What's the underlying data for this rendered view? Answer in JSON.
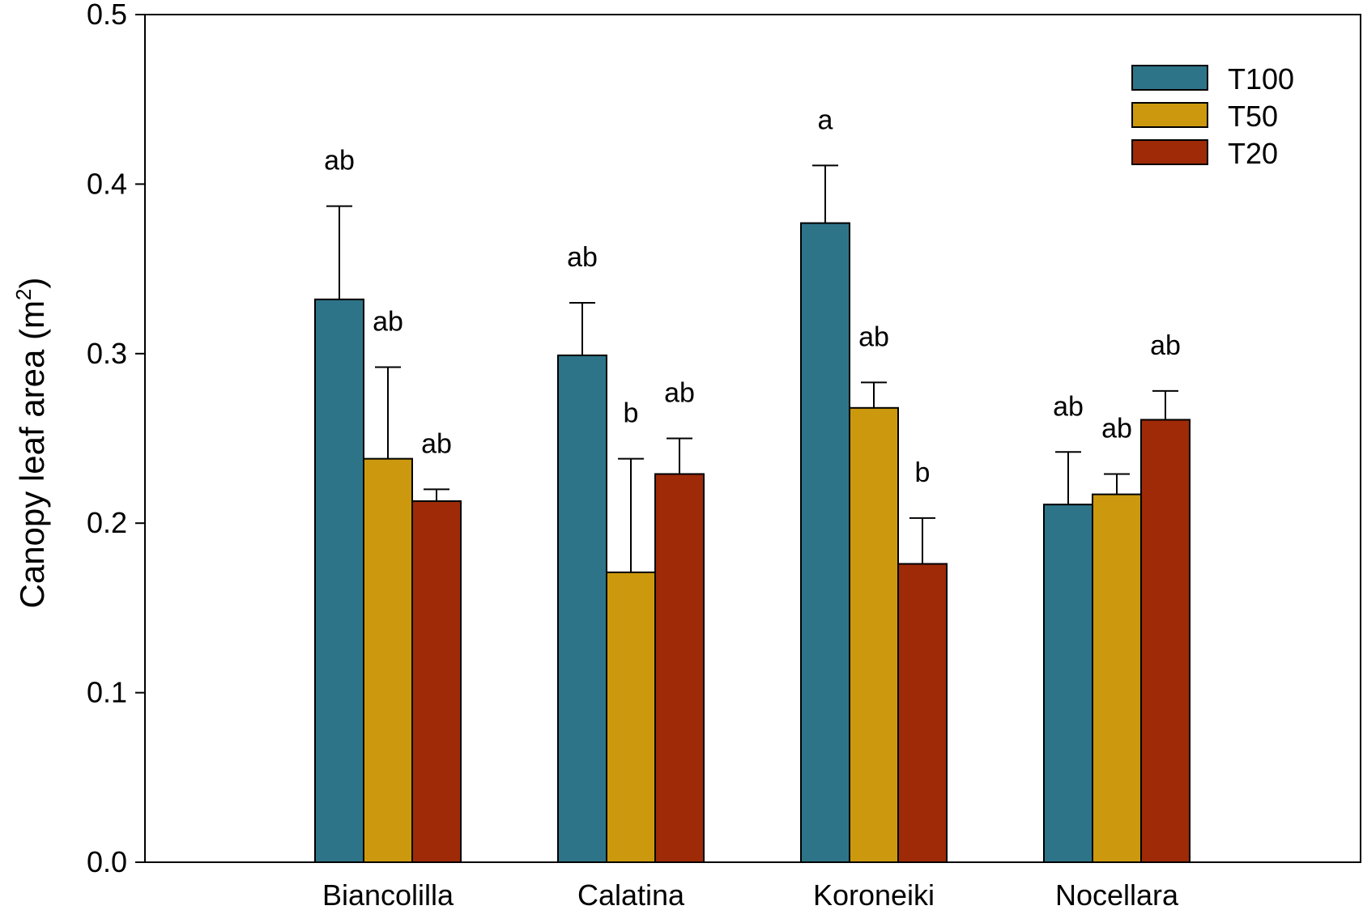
{
  "chart_data": {
    "type": "bar",
    "title": "",
    "xlabel": "",
    "ylabel": {
      "main": "Canopy leaf area (m",
      "superscript": "2",
      "close": ")"
    },
    "ylim": [
      0,
      0.5
    ],
    "yticks": [
      "0.0",
      "0.1",
      "0.2",
      "0.3",
      "0.4",
      "0.5"
    ],
    "ytick_values": [
      0,
      0.1,
      0.2,
      0.3,
      0.4,
      0.5
    ],
    "categories": [
      "Biancolilla",
      "Calatina",
      "Koroneiki",
      "Nocellara"
    ],
    "series": [
      {
        "name": "T100",
        "color": "#2E7489",
        "values": [
          0.332,
          0.299,
          0.377,
          0.211
        ],
        "error": [
          0.055,
          0.031,
          0.034,
          0.031
        ],
        "labels": [
          "ab",
          "ab",
          "a",
          "ab"
        ]
      },
      {
        "name": "T50",
        "color": "#CC990E",
        "values": [
          0.238,
          0.171,
          0.268,
          0.217
        ],
        "error": [
          0.054,
          0.067,
          0.015,
          0.012
        ],
        "labels": [
          "ab",
          "b",
          "ab",
          "ab"
        ]
      },
      {
        "name": "T20",
        "color": "#9E2A08",
        "values": [
          0.213,
          0.229,
          0.176,
          0.261
        ],
        "error": [
          0.007,
          0.021,
          0.027,
          0.017
        ],
        "labels": [
          "ab",
          "ab",
          "b",
          "ab"
        ]
      }
    ],
    "legend": {
      "position": "top-right",
      "entries": [
        "T100",
        "T50",
        "T20"
      ]
    },
    "grid": false
  }
}
